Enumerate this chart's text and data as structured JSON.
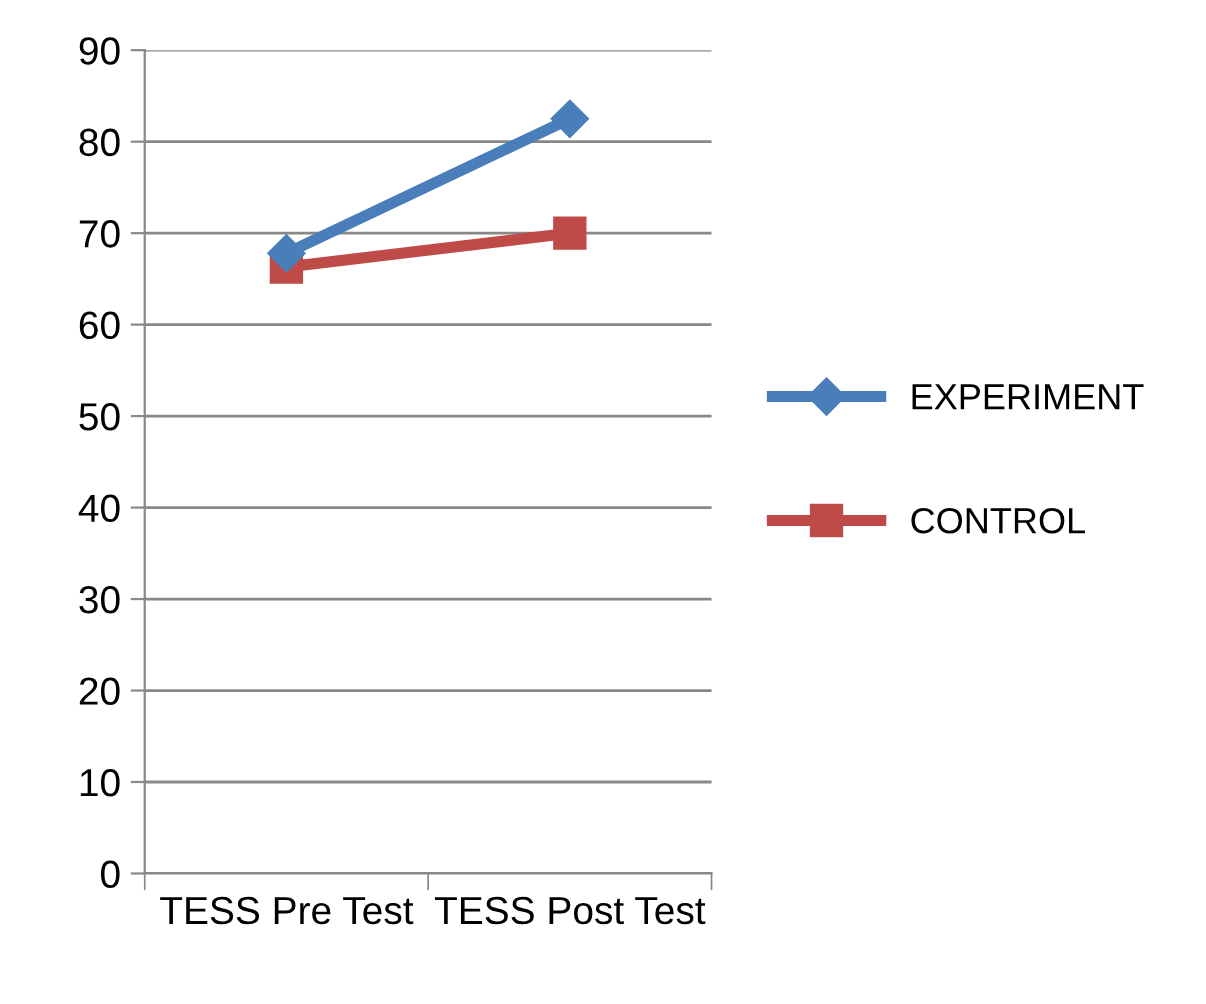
{
  "chart_data": {
    "type": "line",
    "categories": [
      "TESS Pre Test",
      "TESS Post Test"
    ],
    "series": [
      {
        "name": "EXPERIMENT",
        "color": "#4a7ebb",
        "marker": "diamond",
        "values": [
          67.8,
          82.5
        ]
      },
      {
        "name": "CONTROL",
        "color": "#be4b48",
        "marker": "square",
        "values": [
          66.3,
          70
        ]
      }
    ],
    "ylim": [
      0,
      90
    ],
    "yticks": [
      0,
      10,
      20,
      30,
      40,
      50,
      60,
      70,
      80,
      90
    ],
    "grid": "y",
    "legend": "right",
    "line_style": "solid"
  }
}
